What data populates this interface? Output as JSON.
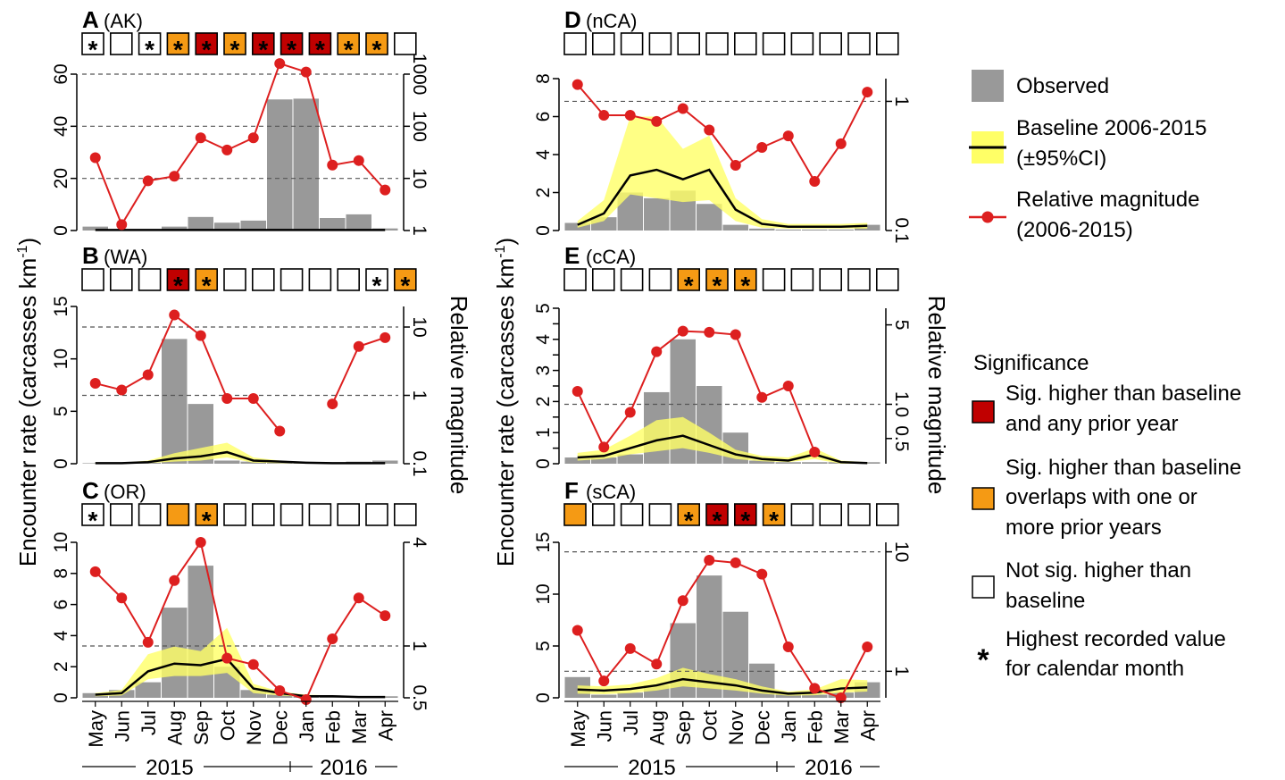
{
  "figure": {
    "y_label_left": "Encounter rate (carcasses km",
    "y_label_left_sup": "-1",
    "y_label_left_end": ")",
    "y_label_right": "Relative magnitude",
    "month_labels": [
      "May",
      "Jun",
      "Jul",
      "Aug",
      "Sep",
      "Oct",
      "Nov",
      "Dec",
      "Jan",
      "Feb",
      "Mar",
      "Apr"
    ],
    "year_labels": [
      "2015",
      "2016"
    ]
  },
  "legend": {
    "observed": "Observed",
    "baseline_line1": "Baseline 2006-2015",
    "baseline_line2": "(±95%CI)",
    "relmag_line1": "Relative magnitude",
    "relmag_line2": "(2006-2015)",
    "significance_title": "Significance",
    "sig_red_line1": "Sig. higher than baseline",
    "sig_red_line2": "and any prior year",
    "sig_orange_line1": "Sig. higher than baseline",
    "sig_orange_line2": "overlaps with one or",
    "sig_orange_line3": "more prior years",
    "sig_none_line1": "Not sig. higher than",
    "sig_none_line2": "baseline",
    "star_line1": "Highest recorded value",
    "star_line2": "for calendar month",
    "star_symbol": "*"
  },
  "colors": {
    "observed": "#999999",
    "ci": "#FFFF66",
    "baseline": "#000000",
    "relmag": "#DD1F1F",
    "sig_red": "#C00000",
    "sig_orange": "#F59A14",
    "sig_none": "#FFFFFF"
  },
  "chart_data": [
    {
      "type": "bar",
      "panel": "A",
      "region": "(AK)",
      "categories": [
        "May",
        "Jun",
        "Jul",
        "Aug",
        "Sep",
        "Oct",
        "Nov",
        "Dec",
        "Jan",
        "Feb",
        "Mar",
        "Apr"
      ],
      "ylim": [
        0,
        60
      ],
      "y_ticks": [
        0,
        20,
        40,
        60
      ],
      "y2_log": true,
      "y2lim": [
        1,
        1000
      ],
      "y2_ticks": [
        1,
        10,
        100,
        1000
      ],
      "y2_tick_labels": [
        "1",
        "10",
        "100",
        "1000"
      ],
      "ref_lines": [
        10,
        100,
        1000
      ],
      "series": [
        {
          "name": "Observed",
          "values": [
            1.5,
            0.3,
            0.5,
            1.5,
            5.2,
            3.0,
            3.8,
            50.3,
            50.6,
            4.8,
            6.2,
            0.8
          ]
        },
        {
          "name": "Baseline 2006-2015",
          "values": [
            0.2,
            0.2,
            0.2,
            0.2,
            0.2,
            0.2,
            0.2,
            0.2,
            0.2,
            0.2,
            0.2,
            0.2
          ],
          "ci_low": [
            0,
            0,
            0,
            0,
            0,
            0,
            0,
            0,
            0,
            0,
            0,
            0
          ],
          "ci_high": [
            0.4,
            0.4,
            0.4,
            0.4,
            0.4,
            0.4,
            0.4,
            0.4,
            0.4,
            0.4,
            0.4,
            0.4
          ]
        },
        {
          "name": "Relative magnitude",
          "values": [
            25,
            1.3,
            9,
            11,
            60,
            35,
            60,
            1600,
            1100,
            18,
            22,
            6
          ]
        }
      ],
      "significance": [
        "none",
        "none",
        "none",
        "orange",
        "red",
        "orange",
        "red",
        "red",
        "red",
        "orange",
        "orange",
        "none"
      ],
      "stars": [
        true,
        false,
        true,
        true,
        true,
        true,
        true,
        true,
        true,
        true,
        true,
        false
      ]
    },
    {
      "type": "bar",
      "panel": "B",
      "region": "(WA)",
      "categories": [
        "May",
        "Jun",
        "Jul",
        "Aug",
        "Sep",
        "Oct",
        "Nov",
        "Dec",
        "Jan",
        "Feb",
        "Mar",
        "Apr"
      ],
      "ylim": [
        0,
        15
      ],
      "y_ticks": [
        0,
        5,
        10,
        15
      ],
      "y2_log": true,
      "y2lim": [
        0.1,
        20
      ],
      "y2_ticks": [
        0.1,
        1,
        10
      ],
      "y2_tick_labels": [
        "0.1",
        "1",
        "10"
      ],
      "ref_lines": [
        1,
        10
      ],
      "series": [
        {
          "name": "Observed",
          "values": [
            0.05,
            0.05,
            0.1,
            11.9,
            5.7,
            0.3,
            0.2,
            0.1,
            0.05,
            0.05,
            0.2,
            0.3
          ]
        },
        {
          "name": "Baseline 2006-2015",
          "values": [
            0.05,
            0.05,
            0.15,
            0.5,
            0.7,
            1.1,
            0.3,
            0.2,
            0.1,
            0.05,
            0.05,
            0.05
          ],
          "ci_low": [
            0,
            0,
            0.05,
            0.2,
            0.3,
            0.6,
            0.1,
            0.05,
            0.02,
            0,
            0,
            0
          ],
          "ci_high": [
            0.1,
            0.1,
            0.3,
            1.0,
            1.5,
            2.0,
            0.6,
            0.3,
            0.15,
            0.1,
            0.1,
            0.1
          ]
        },
        {
          "name": "Relative magnitude",
          "values": [
            1.5,
            1.2,
            2.0,
            15,
            7.5,
            0.9,
            0.9,
            0.3,
            null,
            0.75,
            5.2,
            7.0
          ]
        }
      ],
      "significance": [
        "none",
        "none",
        "none",
        "red",
        "orange",
        "none",
        "none",
        "none",
        "none",
        "none",
        "none",
        "orange"
      ],
      "stars": [
        false,
        false,
        false,
        true,
        true,
        false,
        false,
        false,
        false,
        false,
        true,
        true
      ]
    },
    {
      "type": "bar",
      "panel": "C",
      "region": "(OR)",
      "categories": [
        "May",
        "Jun",
        "Jul",
        "Aug",
        "Sep",
        "Oct",
        "Nov",
        "Dec",
        "Jan",
        "Feb",
        "Mar",
        "Apr"
      ],
      "ylim": [
        0,
        10
      ],
      "y_ticks": [
        0,
        2,
        4,
        6,
        8,
        10
      ],
      "y2_log": true,
      "y2lim": [
        0.5,
        4
      ],
      "y2_ticks": [
        0.5,
        1,
        4
      ],
      "y2_tick_labels": [
        "0.5",
        "1",
        "4"
      ],
      "ref_lines": [
        1
      ],
      "series": [
        {
          "name": "Observed",
          "values": [
            0.3,
            0.5,
            1.0,
            5.8,
            8.5,
            2.0,
            0.5,
            0.2,
            0.1,
            0.1,
            0.1,
            0.1
          ]
        },
        {
          "name": "Baseline 2006-2015",
          "values": [
            0.2,
            0.3,
            1.7,
            2.2,
            2.1,
            2.5,
            0.6,
            0.3,
            0.1,
            0.1,
            0.05,
            0.05
          ],
          "ci_low": [
            0.1,
            0.15,
            1.2,
            1.4,
            1.4,
            1.6,
            0.3,
            0.15,
            0.05,
            0.05,
            0,
            0
          ],
          "ci_high": [
            0.3,
            0.5,
            2.8,
            3.3,
            3.0,
            4.5,
            0.9,
            0.4,
            0.2,
            0.15,
            0.1,
            0.1
          ]
        },
        {
          "name": "Relative magnitude",
          "values": [
            2.7,
            1.9,
            1.05,
            2.4,
            4.0,
            0.85,
            0.78,
            0.55,
            0.48,
            1.1,
            1.9,
            1.5
          ]
        }
      ],
      "significance": [
        "none",
        "none",
        "none",
        "orange",
        "orange",
        "none",
        "none",
        "none",
        "none",
        "none",
        "none",
        "none"
      ],
      "stars": [
        true,
        false,
        false,
        false,
        true,
        false,
        false,
        false,
        false,
        false,
        false,
        false
      ]
    },
    {
      "type": "bar",
      "panel": "D",
      "region": "(nCA)",
      "categories": [
        "May",
        "Jun",
        "Jul",
        "Aug",
        "Sep",
        "Oct",
        "Nov",
        "Dec",
        "Jan",
        "Feb",
        "Mar",
        "Apr"
      ],
      "ylim": [
        0,
        8
      ],
      "y_ticks": [
        0,
        2,
        4,
        6,
        8
      ],
      "y2_log": true,
      "y2lim": [
        0.1,
        1.5
      ],
      "y2_ticks": [
        0.1,
        1
      ],
      "y2_tick_labels": [
        "0.1",
        "1"
      ],
      "ref_lines": [
        1
      ],
      "series": [
        {
          "name": "Observed",
          "values": [
            0.4,
            0.7,
            2.0,
            1.7,
            2.1,
            1.4,
            0.3,
            0.1,
            0.05,
            0.05,
            0.05,
            0.3
          ]
        },
        {
          "name": "Baseline 2006-2015",
          "values": [
            0.3,
            0.9,
            2.9,
            3.2,
            2.7,
            3.2,
            1.1,
            0.35,
            0.2,
            0.2,
            0.2,
            0.25
          ],
          "ci_low": [
            0.15,
            0.5,
            1.9,
            1.7,
            1.5,
            1.6,
            0.5,
            0.15,
            0.1,
            0.1,
            0.1,
            0.1
          ],
          "ci_high": [
            0.5,
            1.6,
            6.0,
            6.0,
            4.3,
            5.0,
            1.7,
            0.6,
            0.35,
            0.35,
            0.35,
            0.4
          ]
        },
        {
          "name": "Relative magnitude",
          "values": [
            1.35,
            0.78,
            0.78,
            0.7,
            0.88,
            0.6,
            0.32,
            0.44,
            0.54,
            0.24,
            0.47,
            1.18
          ]
        }
      ],
      "significance": [
        "none",
        "none",
        "none",
        "none",
        "none",
        "none",
        "none",
        "none",
        "none",
        "none",
        "none",
        "none"
      ],
      "stars": [
        false,
        false,
        false,
        false,
        false,
        false,
        false,
        false,
        false,
        false,
        false,
        false
      ]
    },
    {
      "type": "bar",
      "panel": "E",
      "region": "(cCA)",
      "categories": [
        "May",
        "Jun",
        "Jul",
        "Aug",
        "Sep",
        "Oct",
        "Nov",
        "Dec",
        "Jan",
        "Feb",
        "Mar",
        "Apr"
      ],
      "ylim": [
        0,
        5
      ],
      "y_ticks": [
        0,
        0.5,
        1,
        1.5,
        2,
        2.5,
        3,
        3.5,
        4,
        4.5,
        5
      ],
      "y_tick_labels": [
        "0",
        "",
        "1",
        "",
        "2",
        "",
        "3",
        "",
        "4",
        "",
        "5"
      ],
      "y2_log": true,
      "y2lim": [
        0.3,
        7
      ],
      "y2_ticks": [
        0.5,
        1,
        5
      ],
      "y2_tick_labels": [
        "0.5",
        "1.0",
        "5"
      ],
      "ref_lines": [
        1
      ],
      "series": [
        {
          "name": "Observed",
          "values": [
            0.2,
            0.2,
            0.3,
            2.3,
            4.0,
            2.5,
            1.0,
            0.1,
            0.05,
            0.05,
            0.05,
            0.05
          ]
        },
        {
          "name": "Baseline 2006-2015",
          "values": [
            0.2,
            0.25,
            0.5,
            0.75,
            0.9,
            0.6,
            0.3,
            0.15,
            0.1,
            0.3,
            0.05,
            0.02
          ],
          "ci_low": [
            0.1,
            0.15,
            0.3,
            0.4,
            0.5,
            0.35,
            0.15,
            0.08,
            0.05,
            0.15,
            0,
            0
          ],
          "ci_high": [
            0.35,
            0.45,
            0.9,
            1.4,
            1.5,
            1.0,
            0.45,
            0.25,
            0.2,
            0.5,
            0.1,
            0.05
          ]
        },
        {
          "name": "Relative magnitude",
          "values": [
            1.3,
            0.42,
            0.85,
            2.9,
            4.4,
            4.3,
            4.1,
            1.15,
            1.45,
            0.38,
            null,
            null
          ]
        }
      ],
      "significance": [
        "none",
        "none",
        "none",
        "none",
        "orange",
        "orange",
        "orange",
        "none",
        "none",
        "none",
        "none",
        "none"
      ],
      "stars": [
        false,
        false,
        false,
        false,
        true,
        true,
        true,
        false,
        false,
        false,
        false,
        false
      ]
    },
    {
      "type": "bar",
      "panel": "F",
      "region": "(sCA)",
      "categories": [
        "May",
        "Jun",
        "Jul",
        "Aug",
        "Sep",
        "Oct",
        "Nov",
        "Dec",
        "Jan",
        "Feb",
        "Mar",
        "Apr"
      ],
      "ylim": [
        0,
        15
      ],
      "y_ticks": [
        0,
        5,
        10,
        15
      ],
      "y2_log": true,
      "y2lim": [
        0.6,
        12
      ],
      "y2_ticks": [
        1,
        10
      ],
      "y2_tick_labels": [
        "1",
        "10"
      ],
      "ref_lines": [
        1,
        10
      ],
      "series": [
        {
          "name": "Observed",
          "values": [
            2.0,
            0.3,
            0.5,
            1.2,
            7.2,
            11.8,
            8.3,
            3.3,
            0.5,
            0.3,
            0.5,
            1.5
          ]
        },
        {
          "name": "Baseline 2006-2015",
          "values": [
            0.8,
            0.7,
            0.85,
            1.2,
            1.8,
            1.5,
            1.2,
            0.7,
            0.4,
            0.5,
            0.9,
            1.0
          ],
          "ci_low": [
            0.4,
            0.35,
            0.45,
            0.7,
            1.1,
            0.9,
            0.7,
            0.4,
            0.2,
            0.25,
            0.5,
            0.6
          ],
          "ci_high": [
            1.2,
            1.1,
            1.3,
            1.9,
            2.9,
            2.3,
            1.8,
            1.1,
            0.6,
            0.8,
            1.8,
            1.7
          ]
        },
        {
          "name": "Relative magnitude",
          "values": [
            2.2,
            0.83,
            1.55,
            1.15,
            3.9,
            8.5,
            8.1,
            6.5,
            1.6,
            0.72,
            0.6,
            1.6
          ]
        }
      ],
      "significance": [
        "orange",
        "none",
        "none",
        "none",
        "orange",
        "red",
        "red",
        "orange",
        "none",
        "none",
        "none",
        "none"
      ],
      "stars": [
        false,
        false,
        false,
        false,
        true,
        true,
        true,
        true,
        false,
        false,
        false,
        false
      ]
    }
  ]
}
